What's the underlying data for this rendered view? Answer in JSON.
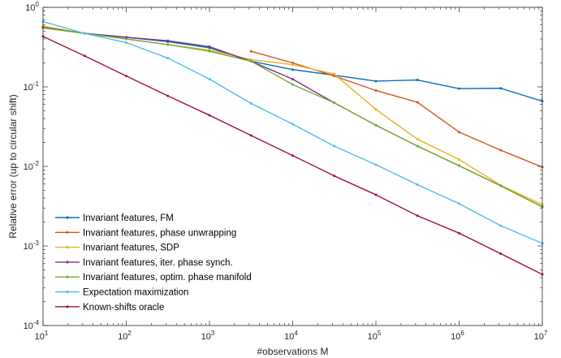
{
  "chart_data": {
    "type": "line",
    "xscale": "log",
    "yscale": "log",
    "xlim": [
      10,
      10000000
    ],
    "ylim": [
      0.0001,
      1
    ],
    "xlabel": "#observations M",
    "ylabel": "Relative error (up to circular shift)",
    "x_ticks": [
      {
        "base": "10",
        "exp": "1"
      },
      {
        "base": "10",
        "exp": "2"
      },
      {
        "base": "10",
        "exp": "3"
      },
      {
        "base": "10",
        "exp": "4"
      },
      {
        "base": "10",
        "exp": "5"
      },
      {
        "base": "10",
        "exp": "6"
      },
      {
        "base": "10",
        "exp": "7"
      }
    ],
    "y_ticks": [
      {
        "base": "10",
        "exp": "-4"
      },
      {
        "base": "10",
        "exp": "-3"
      },
      {
        "base": "10",
        "exp": "-2"
      },
      {
        "base": "10",
        "exp": "-1"
      },
      {
        "base": "10",
        "exp": "0"
      }
    ],
    "grid": false,
    "legend_position": "bottom-left",
    "series": [
      {
        "name": "Invariant features, FM",
        "color": "#0072BD",
        "x": [
          10,
          31.6,
          100,
          316,
          1000,
          3160,
          10000,
          31600,
          100000,
          316000,
          1000000,
          3160000,
          10000000
        ],
        "y": [
          0.56,
          0.47,
          0.42,
          0.37,
          0.31,
          0.21,
          0.165,
          0.14,
          0.118,
          0.122,
          0.095,
          0.096,
          0.066
        ]
      },
      {
        "name": "Invariant features, phase unwrapping",
        "color": "#D95319",
        "x": [
          3160,
          10000,
          31600,
          100000,
          316000,
          1000000,
          3160000,
          10000000
        ],
        "y": [
          0.28,
          0.2,
          0.137,
          0.09,
          0.064,
          0.027,
          0.016,
          0.0098
        ]
      },
      {
        "name": "Invariant features, SDP",
        "color": "#EDB120",
        "x": [
          10,
          31.6,
          100,
          316,
          1000,
          3160,
          10000,
          31600,
          100000,
          316000,
          1000000,
          3160000,
          10000000
        ],
        "y": [
          0.58,
          0.47,
          0.4,
          0.34,
          0.29,
          0.22,
          0.19,
          0.145,
          0.052,
          0.022,
          0.0122,
          0.0058,
          0.0033
        ]
      },
      {
        "name": "Invariant features, iter. phase synch.",
        "color": "#7E2F8E",
        "x": [
          10,
          31.6,
          100,
          316,
          1000,
          3160,
          10000,
          31600,
          100000,
          316000,
          1000000,
          3160000,
          10000000
        ],
        "y": [
          0.56,
          0.47,
          0.42,
          0.38,
          0.32,
          0.21,
          0.125,
          0.063,
          0.033,
          0.018,
          0.0102,
          0.0057,
          0.0031
        ]
      },
      {
        "name": "Invariant features, optim. phase manifold",
        "color": "#77AC30",
        "x": [
          10,
          31.6,
          100,
          316,
          1000,
          3160,
          10000,
          31600,
          100000,
          316000,
          1000000,
          3160000,
          10000000
        ],
        "y": [
          0.55,
          0.47,
          0.4,
          0.34,
          0.28,
          0.21,
          0.107,
          0.063,
          0.033,
          0.018,
          0.0102,
          0.0057,
          0.0031
        ]
      },
      {
        "name": "Expectation maximization",
        "color": "#4DBEEE",
        "x": [
          10,
          31.6,
          100,
          316,
          1000,
          3160,
          10000,
          31600,
          100000,
          316000,
          1000000,
          3160000,
          10000000
        ],
        "y": [
          0.66,
          0.47,
          0.36,
          0.23,
          0.125,
          0.062,
          0.034,
          0.018,
          0.0105,
          0.0059,
          0.0034,
          0.0018,
          0.00108
        ]
      },
      {
        "name": "Known-shifts oracle",
        "color": "#A2142F",
        "x": [
          10,
          31.6,
          100,
          316,
          1000,
          3160,
          10000,
          31600,
          100000,
          316000,
          1000000,
          3160000,
          10000000
        ],
        "y": [
          0.43,
          0.245,
          0.137,
          0.077,
          0.044,
          0.0245,
          0.0137,
          0.0076,
          0.0044,
          0.0024,
          0.00145,
          0.0008,
          0.00044
        ]
      }
    ]
  }
}
